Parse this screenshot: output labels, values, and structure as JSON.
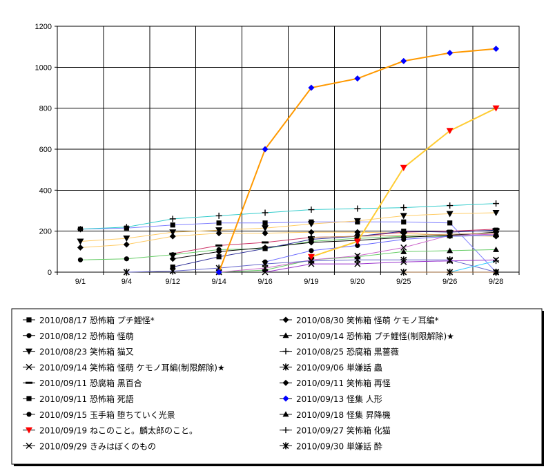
{
  "chart_data": {
    "type": "line",
    "title": "",
    "xlabel": "",
    "ylabel": "",
    "ylim": [
      0,
      1200
    ],
    "yticks": [
      0,
      200,
      400,
      600,
      800,
      1000,
      1200
    ],
    "grid": true,
    "legend_placement": "bottom",
    "categories": [
      "9/1",
      "9/4",
      "9/12",
      "9/14",
      "9/16",
      "9/19",
      "9/20",
      "9/25",
      "9/26",
      "9/28"
    ],
    "series": [
      {
        "name": "2010/08/17 恐怖箱 プチ鯉怪*",
        "color": "#000000",
        "marker": "square",
        "values": [
          210,
          215,
          230,
          240,
          240,
          245,
          245,
          245,
          240,
          0
        ]
      },
      {
        "name": "2010/08/30 笑怖箱 怪萌 ケモノ耳編*",
        "color": "#000000",
        "marker": "diamond",
        "values": [
          120,
          135,
          175,
          190,
          190,
          195,
          195,
          190,
          180,
          175
        ]
      },
      {
        "name": "2010/08/12 恐怖箱 怪萌",
        "color": "#000000",
        "marker": "circle",
        "values": [
          60,
          65,
          85,
          110,
          115,
          150,
          165,
          175,
          175,
          180
        ]
      },
      {
        "name": "2010/09/14 恐怖箱 プチ鯉怪(制限解除)★",
        "color": "#000000",
        "marker": "triangle",
        "values": [
          null,
          null,
          null,
          0,
          10,
          60,
          75,
          100,
          105,
          110
        ]
      },
      {
        "name": "2010/08/23 笑怖箱 猫又",
        "color": "#000000",
        "marker": "triangle-down",
        "values": [
          150,
          165,
          195,
          205,
          215,
          235,
          250,
          275,
          285,
          290
        ]
      },
      {
        "name": "2010/08/25 恐腐箱 黒薔薇",
        "color": "#000000",
        "marker": "plus",
        "values": [
          210,
          220,
          260,
          275,
          290,
          305,
          310,
          315,
          325,
          335
        ]
      },
      {
        "name": "2010/09/14 笑怖箱 怪萌 ケモノ耳編(制限解除)★",
        "color": "#000000",
        "marker": "x",
        "values": [
          null,
          null,
          null,
          0,
          20,
          60,
          80,
          120,
          180,
          185
        ]
      },
      {
        "name": "2010/09/06 単嫌話 蟲",
        "color": "#000000",
        "marker": "star",
        "values": [
          null,
          0,
          5,
          20,
          40,
          55,
          60,
          60,
          60,
          0
        ]
      },
      {
        "name": "2010/09/11 恐腐箱 黒百合",
        "color": "#000000",
        "marker": "dash",
        "values": [
          null,
          null,
          90,
          130,
          145,
          170,
          175,
          195,
          200,
          210
        ]
      },
      {
        "name": "2010/09/11 笑怖箱 再怪",
        "color": "#000000",
        "marker": "diamond",
        "values": [
          null,
          null,
          65,
          100,
          120,
          145,
          155,
          170,
          180,
          195
        ]
      },
      {
        "name": "2010/09/11 恐怖箱 死語",
        "color": "#000000",
        "marker": "square",
        "values": [
          null,
          null,
          25,
          75,
          115,
          160,
          175,
          200,
          195,
          205
        ]
      },
      {
        "name": "2010/09/13 怪集 人形",
        "color": "#0000ff",
        "marker": "diamond",
        "values": [
          null,
          null,
          null,
          0,
          600,
          900,
          945,
          1030,
          1070,
          1090
        ]
      },
      {
        "name": "2010/09/15 玉手箱 堕ちていく光景",
        "color": "#000000",
        "marker": "circle",
        "values": [
          null,
          null,
          null,
          null,
          50,
          105,
          130,
          160,
          175,
          180
        ]
      },
      {
        "name": "2010/09/18 怪集 昇降機",
        "color": "#000000",
        "marker": "triangle",
        "values": [
          null,
          null,
          null,
          null,
          null,
          170,
          175,
          180,
          185,
          190
        ]
      },
      {
        "name": "2010/09/19 ねこのこと。麟太郎のこと。",
        "color": "#ff0000",
        "marker": "triangle-down",
        "values": [
          null,
          null,
          null,
          null,
          null,
          75,
          150,
          510,
          690,
          800
        ]
      },
      {
        "name": "2010/09/27 笑怖箱 化猫",
        "color": "#000000",
        "marker": "plus",
        "values": [
          null,
          null,
          null,
          null,
          null,
          null,
          null,
          null,
          0,
          55
        ]
      },
      {
        "name": "2010/09/29 きみはぼくのもの",
        "color": "#000000",
        "marker": "x",
        "values": [
          null,
          null,
          null,
          null,
          0,
          40,
          40,
          50,
          55,
          60
        ]
      },
      {
        "name": "2010/09/30 単嫌話 酔",
        "color": "#000000",
        "marker": "star",
        "values": [
          null,
          null,
          null,
          null,
          null,
          null,
          null,
          0,
          0,
          0
        ]
      }
    ]
  }
}
